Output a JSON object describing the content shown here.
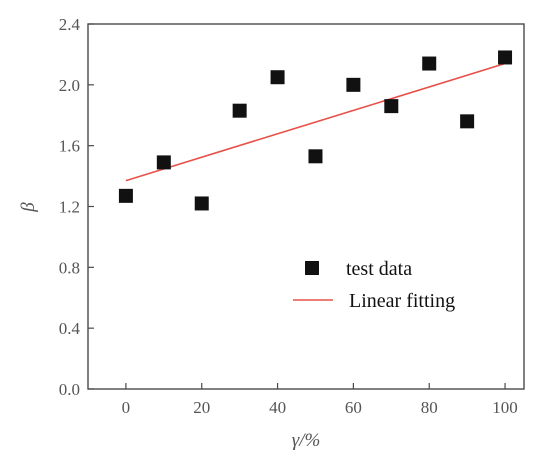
{
  "chart_data": {
    "type": "scatter",
    "title": "",
    "xlabel": "γ/%",
    "ylabel": "β",
    "xlim": [
      -10,
      105
    ],
    "ylim": [
      0.0,
      2.4
    ],
    "xticks": [
      0,
      20,
      40,
      60,
      80,
      100
    ],
    "xtick_labels": [
      "0",
      "20",
      "40",
      "60",
      "80",
      "100"
    ],
    "yticks": [
      0.0,
      0.4,
      0.8,
      1.2,
      1.6,
      2.0,
      2.4
    ],
    "ytick_labels": [
      "0.0",
      "0.4",
      "0.8",
      "1.2",
      "1.6",
      "2.0",
      "2.4"
    ],
    "grid": false,
    "legend_position": "center-right",
    "series": [
      {
        "name": "test data",
        "kind": "scatter",
        "marker": "square",
        "color": "#111111",
        "x": [
          0,
          10,
          20,
          30,
          40,
          50,
          60,
          70,
          80,
          90,
          100
        ],
        "y": [
          1.27,
          1.49,
          1.22,
          1.83,
          2.05,
          1.53,
          2.0,
          1.86,
          2.14,
          1.76,
          2.18
        ]
      },
      {
        "name": "Linear fitting",
        "kind": "line",
        "color": "#e8514a",
        "x": [
          0,
          100
        ],
        "y": [
          1.37,
          2.14
        ]
      }
    ]
  }
}
